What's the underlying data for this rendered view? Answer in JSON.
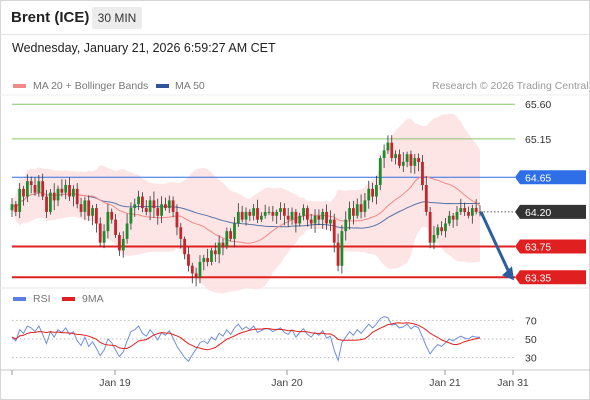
{
  "header": {
    "instrument": "Brent (ICE)",
    "timeframe": "30 MIN",
    "datetime": "Wednesday, January 21, 2026 6:59:27 AM CET"
  },
  "legend": {
    "ma20": "MA 20 + Bollinger Bands",
    "ma50": "MA 50",
    "credit": "Research © 2026 Trading Central",
    "rsi": "RSI",
    "ma9": "9MA"
  },
  "colors": {
    "ma20": "#f08a8a",
    "ma50": "#2e5597",
    "bands": "#fde0e0",
    "up": "#1f8a2c",
    "down": "#c0262c",
    "resistance_green": "#8cc46a",
    "pivot_blue": "#2e6ee6",
    "support_red": "#e02020",
    "last_price": "#333333",
    "rsi_line": "#6f8fe0",
    "rsi_ma": "#e02020"
  },
  "chart_data": [
    {
      "type": "candlestick",
      "ylim": [
        63.25,
        65.72
      ],
      "x_ticks": [
        "Jan 19",
        "Jan 20",
        "Jan 21",
        "Jan 31"
      ],
      "levels": [
        {
          "value": 65.6,
          "label": "65.60",
          "kind": "resistance"
        },
        {
          "value": 65.15,
          "label": "65.15",
          "kind": "resistance"
        },
        {
          "value": 64.65,
          "label": "64.65",
          "kind": "pivot"
        },
        {
          "value": 64.2,
          "label": "64.20",
          "kind": "last"
        },
        {
          "value": 63.75,
          "label": "63.75",
          "kind": "support"
        },
        {
          "value": 63.35,
          "label": "63.35",
          "kind": "support"
        }
      ],
      "forecast": {
        "from": 64.2,
        "to": 63.35
      },
      "series": [
        {
          "name": "MA 20 + Bollinger Bands"
        },
        {
          "name": "MA 50"
        }
      ],
      "closes": [
        64.3,
        64.2,
        64.5,
        64.4,
        64.6,
        64.55,
        64.45,
        64.6,
        64.4,
        64.2,
        64.45,
        64.35,
        64.5,
        64.45,
        64.55,
        64.4,
        64.5,
        64.3,
        64.2,
        64.35,
        64.15,
        64.25,
        64.05,
        63.8,
        63.95,
        64.2,
        64.1,
        63.9,
        63.7,
        63.85,
        64.05,
        64.25,
        64.3,
        64.4,
        64.25,
        64.2,
        64.35,
        64.25,
        64.15,
        64.3,
        64.25,
        64.35,
        64.2,
        64.0,
        63.85,
        63.65,
        63.5,
        63.4,
        63.35,
        63.55,
        63.6,
        63.55,
        63.7,
        63.65,
        63.8,
        63.75,
        63.95,
        63.85,
        64.05,
        64.2,
        64.1,
        64.2,
        64.15,
        64.25,
        64.1,
        64.15,
        64.2,
        64.2,
        64.15,
        64.2,
        64.25,
        64.15,
        64.1,
        64.2,
        64.05,
        64.15,
        64.25,
        64.1,
        64.05,
        64.15,
        64.1,
        64.2,
        64.05,
        64.1,
        63.8,
        63.5,
        63.95,
        64.1,
        64.25,
        64.15,
        64.3,
        64.2,
        64.35,
        64.5,
        64.4,
        64.55,
        64.9,
        65.0,
        65.1,
        64.9,
        64.95,
        64.8,
        64.85,
        64.95,
        64.8,
        64.9,
        64.85,
        64.55,
        64.2,
        63.8,
        63.9,
        64.0,
        63.95,
        64.05,
        64.15,
        64.1,
        64.2,
        64.25,
        64.2,
        64.15,
        64.25,
        64.2,
        64.2
      ],
      "y_ticks": []
    },
    {
      "type": "line",
      "title": "RSI",
      "ylim": [
        22,
        78
      ],
      "levels": [
        70,
        50,
        30
      ],
      "series": [
        {
          "name": "RSI",
          "values": [
            52,
            48,
            60,
            56,
            64,
            62,
            58,
            64,
            55,
            45,
            58,
            52,
            60,
            57,
            62,
            55,
            58,
            48,
            43,
            52,
            42,
            47,
            40,
            32,
            38,
            50,
            46,
            38,
            31,
            36,
            48,
            58,
            60,
            64,
            56,
            53,
            60,
            55,
            49,
            57,
            54,
            59,
            51,
            42,
            36,
            30,
            26,
            33,
            39,
            46,
            48,
            45,
            52,
            49,
            56,
            53,
            60,
            55,
            62,
            66,
            60,
            63,
            60,
            64,
            57,
            59,
            61,
            61,
            58,
            60,
            62,
            57,
            55,
            60,
            52,
            57,
            61,
            55,
            52,
            57,
            54,
            59,
            51,
            53,
            38,
            27,
            46,
            52,
            58,
            54,
            60,
            56,
            61,
            66,
            62,
            66,
            72,
            74,
            73,
            65,
            66,
            62,
            63,
            66,
            61,
            64,
            62,
            52,
            42,
            34,
            40,
            44,
            42,
            46,
            50,
            48,
            51,
            53,
            51,
            50,
            53,
            52,
            52
          ]
        },
        {
          "name": "9MA"
        }
      ]
    }
  ]
}
